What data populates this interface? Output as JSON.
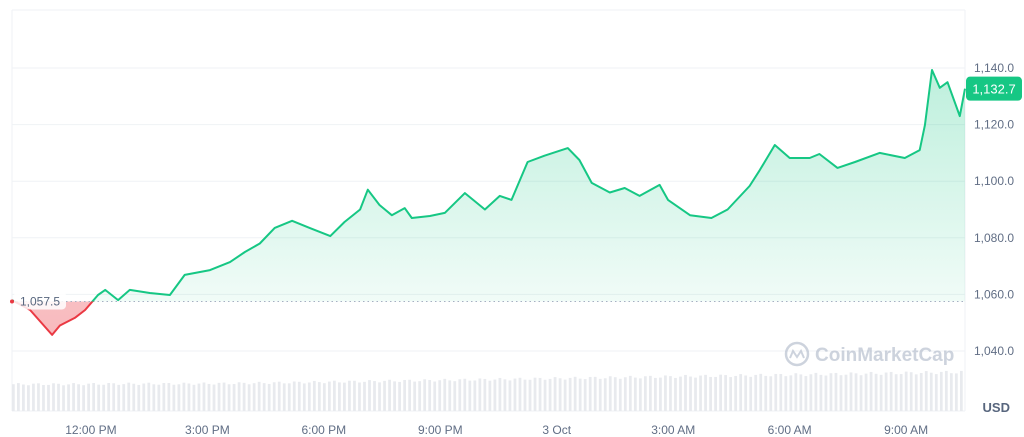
{
  "chart_data": {
    "type": "area",
    "currency_label": "USD",
    "watermark": "CoinMarketCap",
    "baseline": {
      "value": 1057.5,
      "label": "1,057.5"
    },
    "current": {
      "value": 1132.7,
      "label": "1,132.7"
    },
    "ylim": [
      1030,
      1155
    ],
    "y_ticks": [
      {
        "value": 1040,
        "label": "1,040.0"
      },
      {
        "value": 1060,
        "label": "1,060.0"
      },
      {
        "value": 1080,
        "label": "1,080.0"
      },
      {
        "value": 1100,
        "label": "1,100.0"
      },
      {
        "value": 1120,
        "label": "1,120.0"
      },
      {
        "value": 1140,
        "label": "1,140.0"
      }
    ],
    "x_ticks": [
      {
        "t": "2 Oct 12:00",
        "label": "12:00 PM"
      },
      {
        "t": "2 Oct 15:00",
        "label": "3:00 PM"
      },
      {
        "t": "2 Oct 18:00",
        "label": "6:00 PM"
      },
      {
        "t": "2 Oct 21:00",
        "label": "9:00 PM"
      },
      {
        "t": "3 Oct 00:00",
        "label": "3 Oct"
      },
      {
        "t": "3 Oct 03:00",
        "label": "3:00 AM"
      },
      {
        "t": "3 Oct 06:00",
        "label": "6:00 AM"
      },
      {
        "t": "3 Oct 09:00",
        "label": "9:00 AM"
      }
    ],
    "xlim": [
      "2 Oct 09:58",
      "3 Oct 10:31"
    ],
    "colors": {
      "up": "#16c784",
      "down": "#ea3943",
      "grid": "#eff2f5",
      "axis_text": "#616e85",
      "volume": "#e8eaee"
    },
    "series": [
      {
        "t": "2 Oct 09:58",
        "v": 1058
      },
      {
        "t": "2 Oct 10:26",
        "v": 1054.5
      },
      {
        "t": "2 Oct 11:00",
        "v": 1045.7
      },
      {
        "t": "2 Oct 11:12",
        "v": 1049
      },
      {
        "t": "2 Oct 11:35",
        "v": 1051.7
      },
      {
        "t": "2 Oct 11:51",
        "v": 1054.5
      },
      {
        "t": "2 Oct 12:11",
        "v": 1059.8
      },
      {
        "t": "2 Oct 12:22",
        "v": 1061.6
      },
      {
        "t": "2 Oct 12:42",
        "v": 1058
      },
      {
        "t": "2 Oct 13:00",
        "v": 1061.6
      },
      {
        "t": "2 Oct 13:31",
        "v": 1060.5
      },
      {
        "t": "2 Oct 14:02",
        "v": 1059.8
      },
      {
        "t": "2 Oct 14:25",
        "v": 1066.9
      },
      {
        "t": "2 Oct 15:04",
        "v": 1068.6
      },
      {
        "t": "2 Oct 15:35",
        "v": 1071.4
      },
      {
        "t": "2 Oct 15:58",
        "v": 1075
      },
      {
        "t": "2 Oct 16:21",
        "v": 1078
      },
      {
        "t": "2 Oct 16:44",
        "v": 1083.5
      },
      {
        "t": "2 Oct 17:11",
        "v": 1086
      },
      {
        "t": "2 Oct 17:38",
        "v": 1083.5
      },
      {
        "t": "2 Oct 18:10",
        "v": 1080.6
      },
      {
        "t": "2 Oct 18:32",
        "v": 1085.6
      },
      {
        "t": "2 Oct 18:56",
        "v": 1090
      },
      {
        "t": "2 Oct 19:08",
        "v": 1097
      },
      {
        "t": "2 Oct 19:26",
        "v": 1091.6
      },
      {
        "t": "2 Oct 19:45",
        "v": 1088
      },
      {
        "t": "2 Oct 20:05",
        "v": 1090.5
      },
      {
        "t": "2 Oct 20:16",
        "v": 1087
      },
      {
        "t": "2 Oct 20:44",
        "v": 1087.7
      },
      {
        "t": "2 Oct 21:07",
        "v": 1088.8
      },
      {
        "t": "2 Oct 21:38",
        "v": 1095.8
      },
      {
        "t": "2 Oct 22:09",
        "v": 1090
      },
      {
        "t": "2 Oct 22:32",
        "v": 1094.8
      },
      {
        "t": "2 Oct 22:50",
        "v": 1093.4
      },
      {
        "t": "2 Oct 23:15",
        "v": 1106.8
      },
      {
        "t": "2 Oct 23:41",
        "v": 1109
      },
      {
        "t": "3 Oct 00:17",
        "v": 1111.7
      },
      {
        "t": "3 Oct 00:35",
        "v": 1107.5
      },
      {
        "t": "3 Oct 00:54",
        "v": 1099.4
      },
      {
        "t": "3 Oct 01:22",
        "v": 1096
      },
      {
        "t": "3 Oct 01:45",
        "v": 1097.6
      },
      {
        "t": "3 Oct 02:08",
        "v": 1094.8
      },
      {
        "t": "3 Oct 02:39",
        "v": 1098.7
      },
      {
        "t": "3 Oct 02:52",
        "v": 1093.4
      },
      {
        "t": "3 Oct 03:26",
        "v": 1088
      },
      {
        "t": "3 Oct 03:59",
        "v": 1087
      },
      {
        "t": "3 Oct 04:24",
        "v": 1090
      },
      {
        "t": "3 Oct 04:58",
        "v": 1098.3
      },
      {
        "t": "3 Oct 05:14",
        "v": 1104
      },
      {
        "t": "3 Oct 05:37",
        "v": 1112.8
      },
      {
        "t": "3 Oct 06:00",
        "v": 1108.2
      },
      {
        "t": "3 Oct 06:31",
        "v": 1108.2
      },
      {
        "t": "3 Oct 06:46",
        "v": 1109.6
      },
      {
        "t": "3 Oct 07:14",
        "v": 1104.7
      },
      {
        "t": "3 Oct 07:41",
        "v": 1106.8
      },
      {
        "t": "3 Oct 08:19",
        "v": 1110
      },
      {
        "t": "3 Oct 08:58",
        "v": 1108.2
      },
      {
        "t": "3 Oct 09:21",
        "v": 1111
      },
      {
        "t": "3 Oct 09:29",
        "v": 1119.8
      },
      {
        "t": "3 Oct 09:40",
        "v": 1139.3
      },
      {
        "t": "3 Oct 09:52",
        "v": 1133
      },
      {
        "t": "3 Oct 10:04",
        "v": 1135
      },
      {
        "t": "3 Oct 10:23",
        "v": 1123
      },
      {
        "t": "3 Oct 10:31",
        "v": 1132.7
      }
    ],
    "volume_relative": [
      0.62,
      0.62,
      0.63,
      0.63,
      0.64,
      0.66,
      0.68,
      0.7,
      0.72,
      0.74,
      0.76,
      0.78,
      0.8,
      0.82,
      0.84,
      0.86,
      0.88,
      0.9
    ]
  }
}
